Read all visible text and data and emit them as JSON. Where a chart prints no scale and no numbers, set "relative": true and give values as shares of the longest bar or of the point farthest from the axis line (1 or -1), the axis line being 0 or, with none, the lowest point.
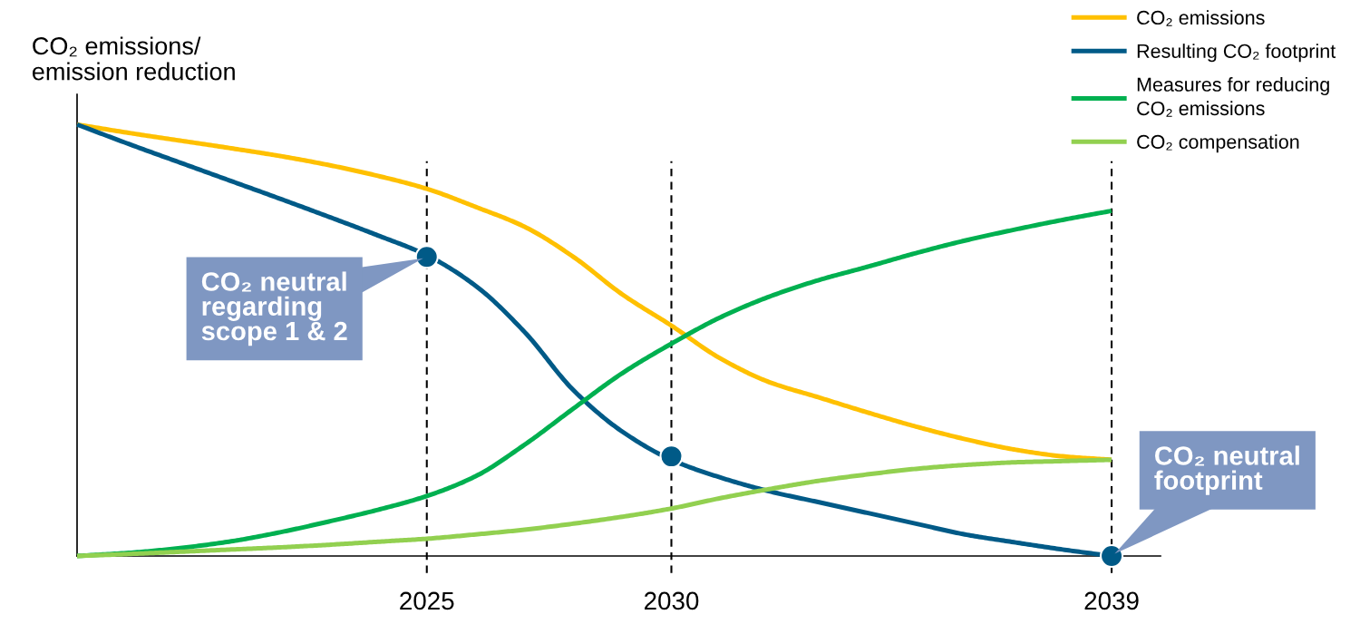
{
  "chart_data": {
    "type": "line",
    "ylabel": "CO₂ emissions/\nemission reduction",
    "relative": true,
    "x": [
      2017.85,
      2019,
      2020,
      2021,
      2022,
      2023,
      2024,
      2025,
      2026,
      2027,
      2028,
      2029,
      2030,
      2031,
      2032,
      2033,
      2034,
      2035,
      2036,
      2037,
      2038,
      2039
    ],
    "xlim": [
      2017.85,
      2040
    ],
    "xticks": [
      2025,
      2030,
      2039
    ],
    "series": [
      {
        "name": "CO₂ emissions",
        "color": "#ffc000",
        "values": [
          1.0,
          0.979,
          0.962,
          0.945,
          0.927,
          0.906,
          0.881,
          0.851,
          0.809,
          0.763,
          0.693,
          0.606,
          0.534,
          0.458,
          0.403,
          0.368,
          0.333,
          0.3,
          0.271,
          0.247,
          0.231,
          0.223
        ]
      },
      {
        "name": "Resulting CO₂ footprint",
        "color": "#005a87",
        "values": [
          1.0,
          0.951,
          0.91,
          0.869,
          0.828,
          0.786,
          0.743,
          0.697,
          0.626,
          0.519,
          0.384,
          0.288,
          0.223,
          0.182,
          0.15,
          0.125,
          0.1,
          0.075,
          0.05,
          0.032,
          0.015,
          0
        ]
      },
      {
        "name": "Measures for reducing\nCO₂ emissions",
        "color": "#00b050",
        "values": [
          0,
          0.008,
          0.019,
          0.034,
          0.055,
          0.08,
          0.107,
          0.139,
          0.185,
          0.258,
          0.342,
          0.424,
          0.492,
          0.553,
          0.601,
          0.639,
          0.67,
          0.702,
          0.731,
          0.756,
          0.779,
          0.8
        ]
      },
      {
        "name": "CO₂ compensation",
        "color": "#92d050",
        "values": [
          0,
          0.005,
          0.01,
          0.015,
          0.02,
          0.026,
          0.033,
          0.04,
          0.05,
          0.061,
          0.075,
          0.091,
          0.11,
          0.134,
          0.155,
          0.174,
          0.189,
          0.202,
          0.211,
          0.217,
          0.22,
          0.223
        ]
      },
      {
        "type": "scatter",
        "marker": "circle",
        "color": "#005a87",
        "x": [
          2025,
          2030,
          2039
        ],
        "values": [
          0.693,
          0.231,
          0
        ]
      }
    ],
    "ref_lines": [
      {
        "axis": "x",
        "value": 2025,
        "color": "#000000",
        "line_style": "dashed"
      },
      {
        "axis": "x",
        "value": 2030,
        "color": "#000000",
        "line_style": "dashed"
      },
      {
        "axis": "x",
        "value": 2039,
        "color": "#000000",
        "line_style": "dashed"
      }
    ],
    "annotations": [
      {
        "text": "CO₂ neutral\nregarding\nscope 1 & 2",
        "x": 2025,
        "y": 0.693
      },
      {
        "text": "CO₂ neutral\nfootprint",
        "x": 2039,
        "y": 0
      }
    ],
    "legend": "top right"
  }
}
